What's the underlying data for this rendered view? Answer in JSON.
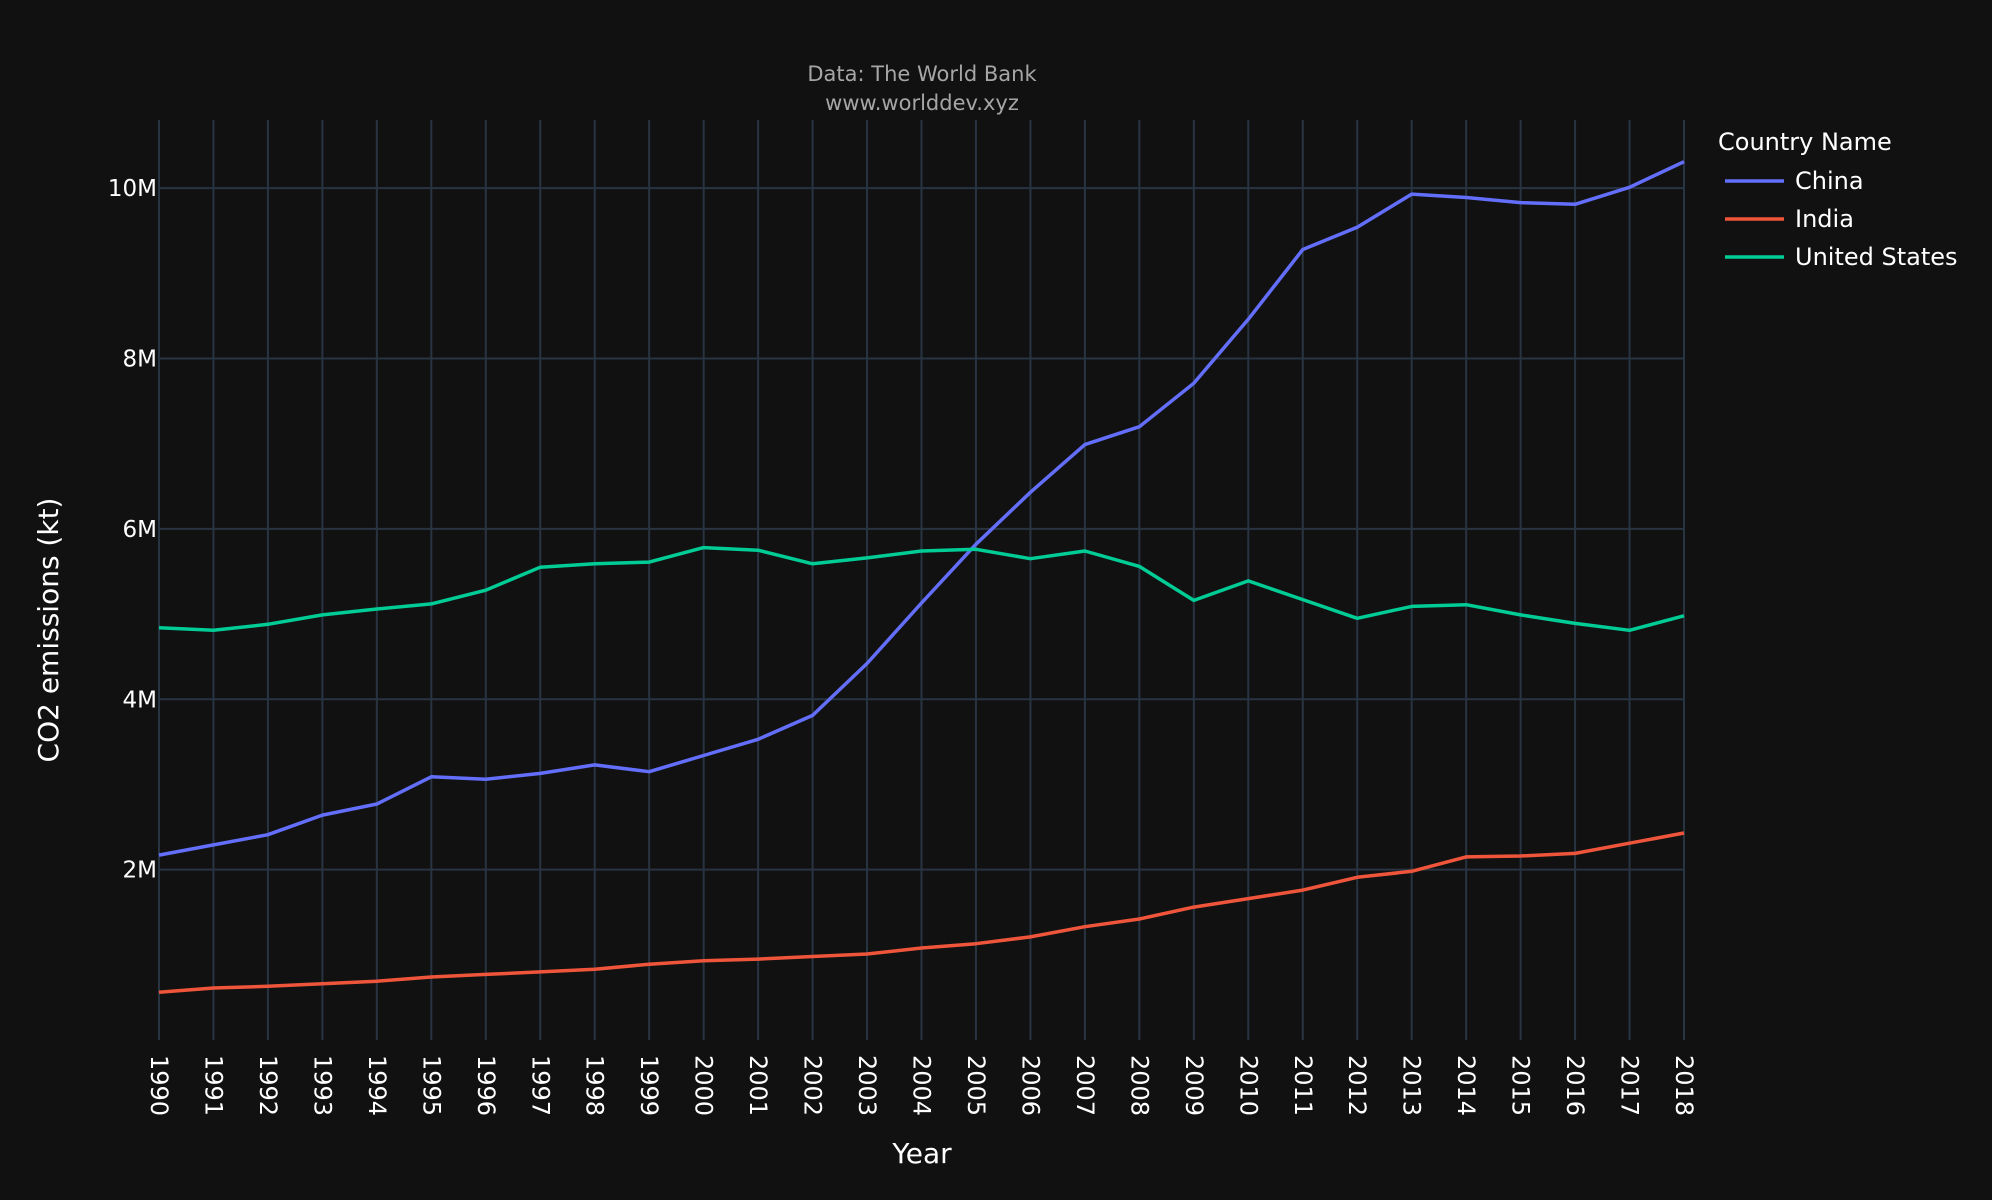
{
  "chart_data": {
    "type": "line",
    "title": "",
    "subtitle_lines": [
      "Data: The World Bank",
      "www.worlddev.xyz"
    ],
    "xlabel": "Year",
    "ylabel": "CO2 emissions (kt)",
    "ylim": [
      0,
      10800000
    ],
    "y_ticks": [
      2000000,
      4000000,
      6000000,
      8000000,
      10000000
    ],
    "y_tick_labels": [
      "2M",
      "4M",
      "6M",
      "8M",
      "10M"
    ],
    "grid": true,
    "legend_title": "Country Name",
    "legend_position": "top-right",
    "x": [
      1990,
      1991,
      1992,
      1993,
      1994,
      1995,
      1996,
      1997,
      1998,
      1999,
      2000,
      2001,
      2002,
      2003,
      2004,
      2005,
      2006,
      2007,
      2008,
      2009,
      2010,
      2011,
      2012,
      2013,
      2014,
      2015,
      2016,
      2017,
      2018
    ],
    "series": [
      {
        "name": "China",
        "color": "#636EFA",
        "values": [
          2170000,
          2290000,
          2410000,
          2640000,
          2770000,
          3090000,
          3060000,
          3130000,
          3230000,
          3150000,
          3340000,
          3530000,
          3810000,
          4420000,
          5130000,
          5820000,
          6430000,
          6990000,
          7200000,
          7710000,
          8460000,
          9280000,
          9540000,
          9930000,
          9890000,
          9830000,
          9810000,
          10010000,
          10310000
        ]
      },
      {
        "name": "India",
        "color": "#EF553B",
        "values": [
          560000,
          610000,
          630000,
          660000,
          690000,
          740000,
          770000,
          800000,
          830000,
          890000,
          930000,
          950000,
          980000,
          1010000,
          1080000,
          1130000,
          1210000,
          1330000,
          1420000,
          1560000,
          1660000,
          1760000,
          1910000,
          1980000,
          2150000,
          2160000,
          2190000,
          2310000,
          2430000
        ]
      },
      {
        "name": "United States",
        "color": "#00CC96",
        "values": [
          4840000,
          4810000,
          4880000,
          4990000,
          5060000,
          5120000,
          5280000,
          5550000,
          5590000,
          5610000,
          5780000,
          5750000,
          5590000,
          5660000,
          5740000,
          5760000,
          5650000,
          5740000,
          5560000,
          5160000,
          5390000,
          5170000,
          4950000,
          5090000,
          5110000,
          4990000,
          4890000,
          4810000,
          4980000
        ]
      }
    ]
  }
}
